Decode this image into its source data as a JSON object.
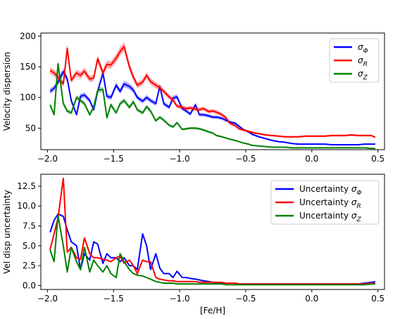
{
  "chart_data": [
    {
      "type": "line",
      "title": "",
      "xlabel": "",
      "ylabel": "Velocity dispersion",
      "xlim": [
        -2.05,
        0.55
      ],
      "ylim": [
        15,
        205
      ],
      "xticks": [
        -2.0,
        -1.5,
        -1.0,
        -0.5,
        0.0,
        0.5
      ],
      "xtick_labels": [
        "−2.0",
        "−1.5",
        "−1.0",
        "−0.5",
        "0.0",
        "0.5"
      ],
      "yticks": [
        50,
        100,
        150,
        200
      ],
      "ytick_labels": [
        "50",
        "100",
        "150",
        "200"
      ],
      "grid": false,
      "legend_position": "top-right",
      "x": [
        -1.98,
        -1.95,
        -1.92,
        -1.88,
        -1.85,
        -1.82,
        -1.78,
        -1.75,
        -1.72,
        -1.68,
        -1.65,
        -1.62,
        -1.58,
        -1.55,
        -1.52,
        -1.48,
        -1.45,
        -1.42,
        -1.38,
        -1.35,
        -1.32,
        -1.28,
        -1.25,
        -1.22,
        -1.18,
        -1.15,
        -1.12,
        -1.08,
        -1.05,
        -1.02,
        -0.98,
        -0.95,
        -0.92,
        -0.88,
        -0.85,
        -0.82,
        -0.78,
        -0.75,
        -0.72,
        -0.68,
        -0.65,
        -0.62,
        -0.58,
        -0.55,
        -0.52,
        -0.48,
        -0.45,
        -0.4,
        -0.35,
        -0.3,
        -0.25,
        -0.2,
        -0.15,
        -0.1,
        -0.05,
        0.0,
        0.05,
        0.1,
        0.15,
        0.2,
        0.25,
        0.3,
        0.35,
        0.4,
        0.45,
        0.48
      ],
      "series": [
        {
          "name": "σΦ",
          "color": "#0000ff",
          "band": true,
          "values": [
            110,
            115,
            125,
            142,
            130,
            95,
            72,
            102,
            104,
            95,
            80,
            110,
            140,
            102,
            100,
            120,
            110,
            122,
            118,
            112,
            100,
            94,
            100,
            95,
            90,
            118,
            90,
            84,
            99,
            101,
            82,
            78,
            73,
            88,
            72,
            72,
            70,
            68,
            68,
            66,
            63,
            60,
            58,
            53,
            48,
            44,
            40,
            36,
            33,
            30,
            28,
            27,
            25,
            24,
            24,
            24,
            24,
            24,
            23,
            23,
            23,
            23,
            23,
            24,
            24,
            24
          ]
        },
        {
          "name": "σR",
          "color": "#ff0000",
          "band": true,
          "values": [
            144,
            140,
            133,
            122,
            180,
            128,
            140,
            136,
            143,
            130,
            132,
            163,
            140,
            154,
            153,
            164,
            175,
            183,
            150,
            133,
            120,
            125,
            136,
            126,
            120,
            116,
            110,
            101,
            96,
            86,
            84,
            82,
            83,
            81,
            80,
            82,
            77,
            78,
            76,
            72,
            67,
            58,
            54,
            49,
            47,
            45,
            43,
            41,
            39,
            38,
            37,
            36,
            36,
            36,
            37,
            37,
            37,
            37,
            38,
            38,
            38,
            39,
            38,
            38,
            38,
            35
          ]
        },
        {
          "name": "σZ",
          "color": "#008000",
          "band": true,
          "values": [
            88,
            72,
            155,
            90,
            78,
            75,
            100,
            95,
            90,
            72,
            85,
            112,
            113,
            67,
            88,
            75,
            90,
            95,
            84,
            93,
            80,
            75,
            85,
            78,
            62,
            68,
            63,
            55,
            52,
            59,
            48,
            49,
            50,
            50,
            49,
            47,
            44,
            42,
            38,
            36,
            34,
            32,
            30,
            28,
            26,
            24,
            22,
            21,
            20,
            19,
            19,
            19,
            18,
            18,
            18,
            18,
            18,
            18,
            18,
            18,
            18,
            18,
            18,
            18,
            17,
            17
          ]
        }
      ]
    },
    {
      "type": "line",
      "title": "",
      "xlabel": "[Fe/H]",
      "ylabel": "Vel disp uncertainty",
      "xlim": [
        -2.05,
        0.55
      ],
      "ylim": [
        -0.5,
        14.0
      ],
      "xticks": [
        -2.0,
        -1.5,
        -1.0,
        -0.5,
        0.0,
        0.5
      ],
      "xtick_labels": [
        "−2.0",
        "−1.5",
        "−1.0",
        "−0.5",
        "0.0",
        "0.5"
      ],
      "yticks": [
        0.0,
        2.5,
        5.0,
        7.5,
        10.0,
        12.5
      ],
      "ytick_labels": [
        "0.0",
        "2.5",
        "5.0",
        "7.5",
        "10.0",
        "12.5"
      ],
      "grid": false,
      "legend_position": "top-right",
      "x": [
        -1.98,
        -1.95,
        -1.92,
        -1.88,
        -1.85,
        -1.82,
        -1.78,
        -1.75,
        -1.72,
        -1.68,
        -1.65,
        -1.62,
        -1.58,
        -1.55,
        -1.52,
        -1.48,
        -1.45,
        -1.42,
        -1.38,
        -1.35,
        -1.32,
        -1.28,
        -1.25,
        -1.22,
        -1.18,
        -1.15,
        -1.12,
        -1.08,
        -1.05,
        -1.02,
        -0.98,
        -0.95,
        -0.92,
        -0.88,
        -0.85,
        -0.82,
        -0.78,
        -0.75,
        -0.72,
        -0.68,
        -0.65,
        -0.62,
        -0.58,
        -0.55,
        -0.52,
        -0.48,
        -0.45,
        -0.4,
        -0.35,
        -0.3,
        -0.25,
        -0.2,
        -0.15,
        -0.1,
        -0.05,
        0.0,
        0.05,
        0.1,
        0.15,
        0.2,
        0.25,
        0.3,
        0.35,
        0.4,
        0.45,
        0.48
      ],
      "series": [
        {
          "name": "Uncertainty σΦ",
          "color": "#0000ff",
          "values": [
            6.7,
            8.2,
            9.0,
            8.7,
            7.0,
            5.5,
            5.0,
            2.0,
            4.0,
            3.2,
            5.5,
            5.2,
            2.8,
            4.0,
            3.5,
            3.5,
            3.0,
            3.5,
            2.5,
            2.5,
            2.0,
            6.5,
            5.0,
            2.0,
            4.0,
            2.2,
            1.5,
            1.5,
            1.0,
            1.8,
            1.0,
            1.0,
            0.9,
            0.8,
            0.7,
            0.6,
            0.5,
            0.4,
            0.3,
            0.3,
            0.3,
            0.3,
            0.3,
            0.2,
            0.2,
            0.2,
            0.2,
            0.2,
            0.2,
            0.2,
            0.2,
            0.2,
            0.2,
            0.2,
            0.2,
            0.2,
            0.2,
            0.2,
            0.2,
            0.2,
            0.2,
            0.2,
            0.2,
            0.3,
            0.4,
            0.5
          ]
        },
        {
          "name": "Uncertainty σR",
          "color": "#ff0000",
          "values": [
            4.5,
            6.5,
            8.5,
            13.5,
            4.2,
            4.8,
            3.5,
            3.3,
            6.0,
            4.0,
            3.5,
            3.5,
            3.3,
            3.2,
            3.0,
            3.5,
            3.7,
            2.8,
            3.2,
            2.5,
            1.5,
            3.2,
            3.0,
            3.0,
            1.0,
            0.8,
            0.7,
            0.6,
            0.6,
            0.5,
            0.5,
            0.5,
            0.5,
            0.5,
            0.4,
            0.4,
            0.4,
            0.4,
            0.4,
            0.4,
            0.3,
            0.3,
            0.3,
            0.2,
            0.2,
            0.2,
            0.2,
            0.2,
            0.2,
            0.2,
            0.2,
            0.2,
            0.2,
            0.2,
            0.2,
            0.2,
            0.2,
            0.2,
            0.2,
            0.2,
            0.2,
            0.2,
            0.2,
            0.2,
            0.3,
            0.3
          ]
        },
        {
          "name": "Uncertainty σZ",
          "color": "#008000",
          "values": [
            4.5,
            3.0,
            8.8,
            5.0,
            1.7,
            4.8,
            3.0,
            2.0,
            4.8,
            1.7,
            3.2,
            2.5,
            1.7,
            2.5,
            1.5,
            1.0,
            4.0,
            3.0,
            2.0,
            1.5,
            1.3,
            1.2,
            1.0,
            0.8,
            0.5,
            0.4,
            0.3,
            0.3,
            0.3,
            0.2,
            0.2,
            0.2,
            0.2,
            0.2,
            0.2,
            0.2,
            0.2,
            0.2,
            0.2,
            0.2,
            0.1,
            0.1,
            0.1,
            0.1,
            0.1,
            0.1,
            0.1,
            0.1,
            0.1,
            0.1,
            0.1,
            0.1,
            0.1,
            0.1,
            0.1,
            0.1,
            0.1,
            0.1,
            0.1,
            0.1,
            0.1,
            0.1,
            0.1,
            0.1,
            0.2,
            0.2
          ]
        }
      ]
    }
  ]
}
